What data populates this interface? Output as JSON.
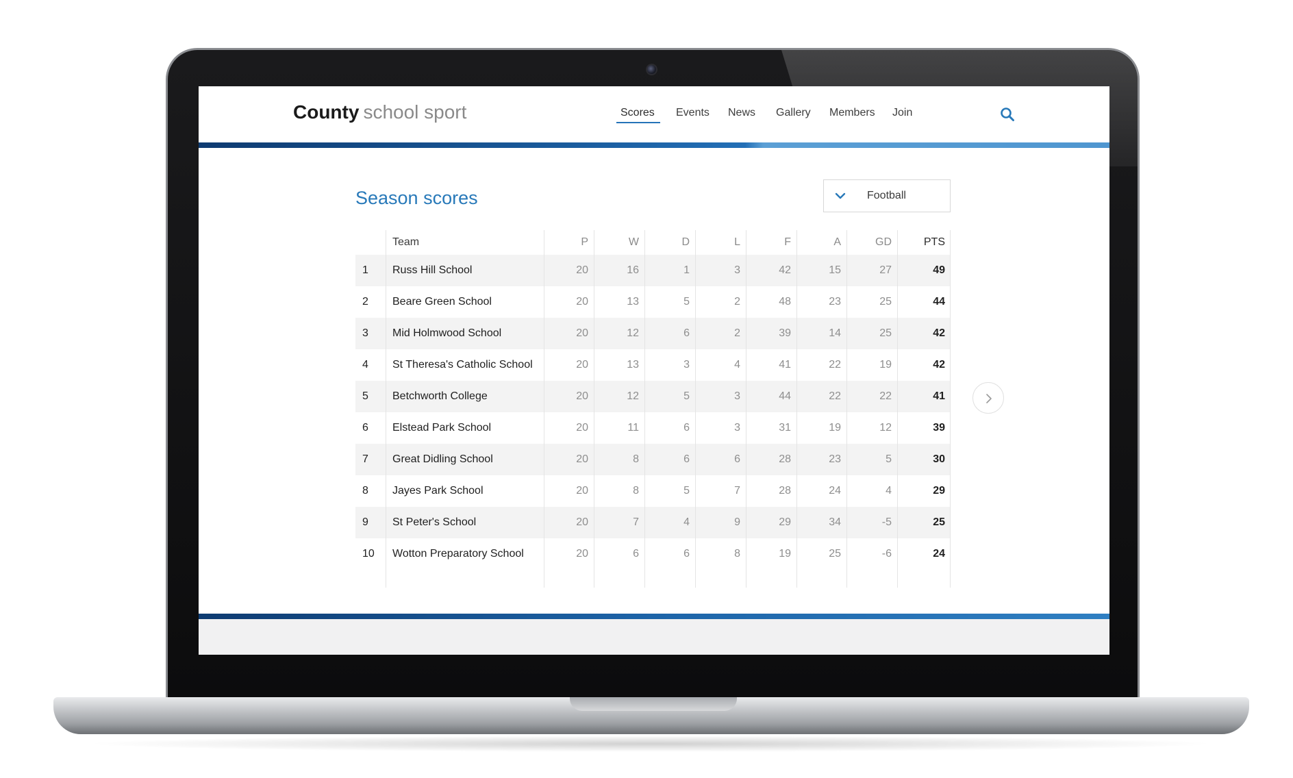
{
  "site": {
    "logo_bold": "County",
    "logo_light": "school sport"
  },
  "nav": {
    "items": [
      {
        "label": "Scores",
        "active": true
      },
      {
        "label": "Events",
        "active": false
      },
      {
        "label": "News",
        "active": false
      },
      {
        "label": "Gallery",
        "active": false
      },
      {
        "label": "Members",
        "active": false
      },
      {
        "label": "Join",
        "active": false
      }
    ],
    "search_icon": "search-icon"
  },
  "page": {
    "title": "Season scores"
  },
  "sport_select": {
    "value": "Football",
    "icon": "chevron-down-icon"
  },
  "table": {
    "headers": {
      "rank": "",
      "team": "Team",
      "p": "P",
      "w": "W",
      "d": "D",
      "l": "L",
      "f": "F",
      "a": "A",
      "gd": "GD",
      "pts": "PTS"
    },
    "rows": [
      {
        "rank": "1",
        "team": "Russ Hill School",
        "p": "20",
        "w": "16",
        "d": "1",
        "l": "3",
        "f": "42",
        "a": "15",
        "gd": "27",
        "pts": "49"
      },
      {
        "rank": "2",
        "team": "Beare Green School",
        "p": "20",
        "w": "13",
        "d": "5",
        "l": "2",
        "f": "48",
        "a": "23",
        "gd": "25",
        "pts": "44"
      },
      {
        "rank": "3",
        "team": "Mid Holmwood School",
        "p": "20",
        "w": "12",
        "d": "6",
        "l": "2",
        "f": "39",
        "a": "14",
        "gd": "25",
        "pts": "42"
      },
      {
        "rank": "4",
        "team": "St Theresa's Catholic School",
        "p": "20",
        "w": "13",
        "d": "3",
        "l": "4",
        "f": "41",
        "a": "22",
        "gd": "19",
        "pts": "42"
      },
      {
        "rank": "5",
        "team": "Betchworth College",
        "p": "20",
        "w": "12",
        "d": "5",
        "l": "3",
        "f": "44",
        "a": "22",
        "gd": "22",
        "pts": "41"
      },
      {
        "rank": "6",
        "team": "Elstead Park School",
        "p": "20",
        "w": "11",
        "d": "6",
        "l": "3",
        "f": "31",
        "a": "19",
        "gd": "12",
        "pts": "39"
      },
      {
        "rank": "7",
        "team": "Great Didling School",
        "p": "20",
        "w": "8",
        "d": "6",
        "l": "6",
        "f": "28",
        "a": "23",
        "gd": "5",
        "pts": "30"
      },
      {
        "rank": "8",
        "team": "Jayes Park School",
        "p": "20",
        "w": "8",
        "d": "5",
        "l": "7",
        "f": "28",
        "a": "24",
        "gd": "4",
        "pts": "29"
      },
      {
        "rank": "9",
        "team": "St Peter's School",
        "p": "20",
        "w": "7",
        "d": "4",
        "l": "9",
        "f": "29",
        "a": "34",
        "gd": "-5",
        "pts": "25"
      },
      {
        "rank": "10",
        "team": "Wotton Preparatory School",
        "p": "20",
        "w": "6",
        "d": "6",
        "l": "8",
        "f": "19",
        "a": "25",
        "gd": "-6",
        "pts": "24"
      }
    ]
  },
  "pager": {
    "next_icon": "chevron-right-icon"
  },
  "colors": {
    "accent": "#2879b9",
    "bar_dark": "#0e3b71",
    "bar_light": "#4f96d0",
    "row_stripe": "#f3f3f3"
  }
}
